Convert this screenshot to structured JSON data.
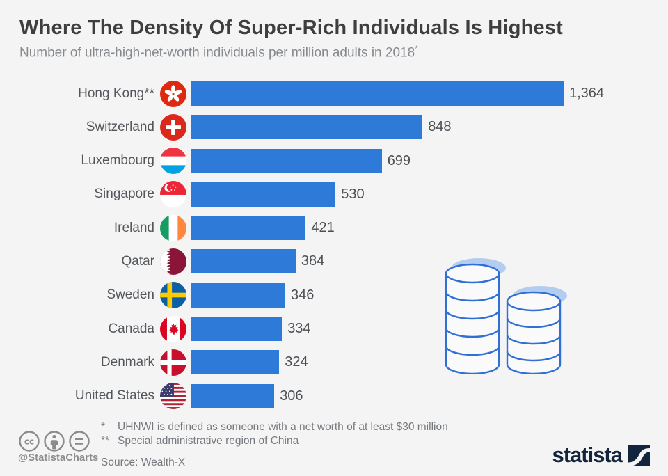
{
  "header": {
    "title": "Where The Density Of Super-Rich Individuals Is Highest",
    "subtitle": "Number of ultra-high-net-worth individuals per million adults in 2018",
    "subtitle_mark": "*"
  },
  "chart_data": {
    "type": "bar",
    "orientation": "horizontal",
    "title": "Where The Density Of Super-Rich Individuals Is Highest",
    "subtitle": "Number of ultra-high-net-worth individuals per million adults in 2018*",
    "categories": [
      "Hong Kong**",
      "Switzerland",
      "Luxembourg",
      "Singapore",
      "Ireland",
      "Qatar",
      "Sweden",
      "Canada",
      "Denmark",
      "United States"
    ],
    "values": [
      1364,
      848,
      699,
      530,
      421,
      384,
      346,
      334,
      324,
      306
    ],
    "value_labels": [
      "1,364",
      "848",
      "699",
      "530",
      "421",
      "384",
      "346",
      "334",
      "324",
      "306"
    ],
    "icons": [
      "flag-hong-kong",
      "flag-switzerland",
      "flag-luxembourg",
      "flag-singapore",
      "flag-ireland",
      "flag-qatar",
      "flag-sweden",
      "flag-canada",
      "flag-denmark",
      "flag-united-states"
    ],
    "bar_color": "#2e7ad9",
    "xlim": [
      0,
      1400
    ],
    "grid": false,
    "legend": false,
    "data_labels": "end-of-bar"
  },
  "footer": {
    "license_icons": [
      "cc-icon",
      "attribution-icon",
      "no-derivatives-icon"
    ],
    "credit": "@StatistaCharts",
    "notes": [
      {
        "marker": "*",
        "text": "UHNWI is defined as someone with a net worth of at least $30 million"
      },
      {
        "marker": "**",
        "text": "Special administrative region of China"
      }
    ],
    "source": "Source: Wealth-X",
    "brand": "statista"
  },
  "colors": {
    "background": "#f4f4f4",
    "bar": "#2e7ad9",
    "title": "#3e3e3e",
    "subtitle": "#85898e",
    "coin_outline": "#2f6fd6",
    "coin_highlight": "#b3cdf1",
    "brand_navy": "#13253d"
  }
}
